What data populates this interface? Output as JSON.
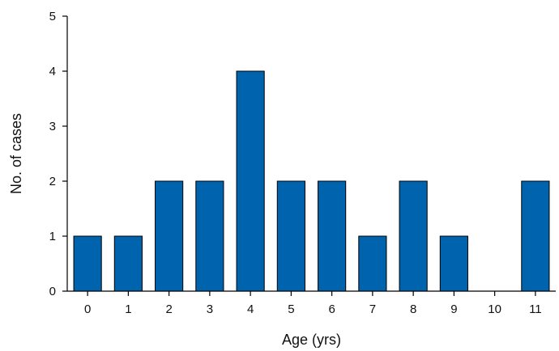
{
  "chart_data": {
    "type": "bar",
    "xlabel": "Age (yrs)",
    "ylabel": "No. of cases",
    "categories": [
      "0",
      "1",
      "2",
      "3",
      "4",
      "5",
      "6",
      "7",
      "8",
      "9",
      "10",
      "11"
    ],
    "values": [
      1,
      1,
      2,
      2,
      4,
      2,
      2,
      1,
      2,
      1,
      0,
      2
    ],
    "ylim": [
      0,
      5
    ],
    "yticks": [
      0,
      1,
      2,
      3,
      4,
      5
    ],
    "bar_color": "#0063ad",
    "grid": false,
    "legend": "none"
  }
}
